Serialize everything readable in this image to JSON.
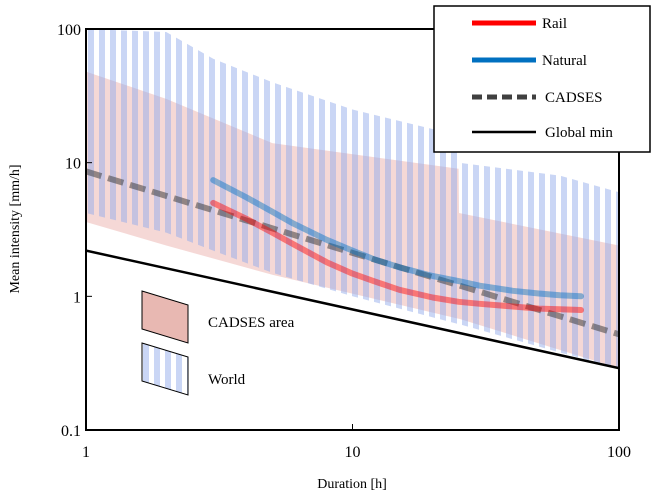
{
  "chart_data": {
    "type": "line",
    "xscale": "log",
    "yscale": "log",
    "xlim": [
      1,
      100
    ],
    "ylim": [
      0.1,
      100
    ],
    "xlabel": "Duration [h]",
    "ylabel": "Mean intensity [mm/h]",
    "xticks": [
      {
        "value": 1,
        "label": "1"
      },
      {
        "value": 10,
        "label": "10"
      },
      {
        "value": 100,
        "label": "100"
      }
    ],
    "yticks": [
      {
        "value": 0.1,
        "label": "0.1"
      },
      {
        "value": 1,
        "label": "1"
      },
      {
        "value": 10,
        "label": "10"
      },
      {
        "value": 100,
        "label": "100"
      }
    ],
    "grid": false,
    "legend_position": "top-right",
    "series": [
      {
        "name": "Rail",
        "color": "#ff0000",
        "style": "solid-thick",
        "x": [
          3,
          4,
          5,
          6,
          8,
          10,
          12,
          15,
          20,
          25,
          30,
          40,
          50,
          60,
          72
        ],
        "y": [
          5.0,
          3.8,
          3.0,
          2.45,
          1.8,
          1.48,
          1.3,
          1.12,
          0.98,
          0.91,
          0.88,
          0.84,
          0.81,
          0.8,
          0.79
        ]
      },
      {
        "name": "Natural",
        "color": "#0070c0",
        "style": "solid-thick",
        "x": [
          3,
          4,
          5,
          6,
          8,
          10,
          12,
          15,
          20,
          25,
          30,
          40,
          50,
          60,
          72
        ],
        "y": [
          7.4,
          5.5,
          4.3,
          3.5,
          2.65,
          2.2,
          1.9,
          1.65,
          1.42,
          1.3,
          1.2,
          1.1,
          1.05,
          1.02,
          1.0
        ]
      },
      {
        "name": "CADSES",
        "color": "#404040",
        "style": "dashed",
        "x": [
          1,
          100
        ],
        "y": [
          8.6,
          0.52
        ]
      },
      {
        "name": "Global min",
        "color": "#000000",
        "style": "solid-thin",
        "x": [
          1,
          100
        ],
        "y": [
          2.2,
          0.29
        ]
      }
    ],
    "bands": [
      {
        "name": "CADSES area",
        "fill": "#e8a9a3",
        "pattern": "solid",
        "x": [
          1,
          2,
          5,
          25,
          25.1,
          100
        ],
        "upper": [
          48,
          30,
          14,
          9.0,
          4.2,
          2.4
        ],
        "lower": [
          3.6,
          2.4,
          1.45,
          0.68,
          0.68,
          0.29
        ]
      },
      {
        "name": "World",
        "fill": "#8fa8ea",
        "pattern": "vertical-stripes",
        "x": [
          1,
          2,
          3,
          5,
          10,
          25,
          25.1,
          60,
          100
        ],
        "upper": [
          100,
          95,
          60,
          40,
          25,
          16,
          10,
          8.0,
          6.0
        ],
        "lower": [
          4.2,
          3.0,
          2.2,
          1.5,
          1.0,
          0.62,
          0.62,
          0.38,
          0.29
        ]
      }
    ],
    "legend": [
      {
        "label": "Rail",
        "series": "Rail"
      },
      {
        "label": "Natural",
        "series": "Natural"
      },
      {
        "label": "CADSES",
        "series": "CADSES"
      },
      {
        "label": "Global min",
        "series": "Global min"
      }
    ],
    "area_legend": [
      {
        "label": "CADSES area",
        "band": "CADSES area"
      },
      {
        "label": "World",
        "band": "World"
      }
    ]
  }
}
